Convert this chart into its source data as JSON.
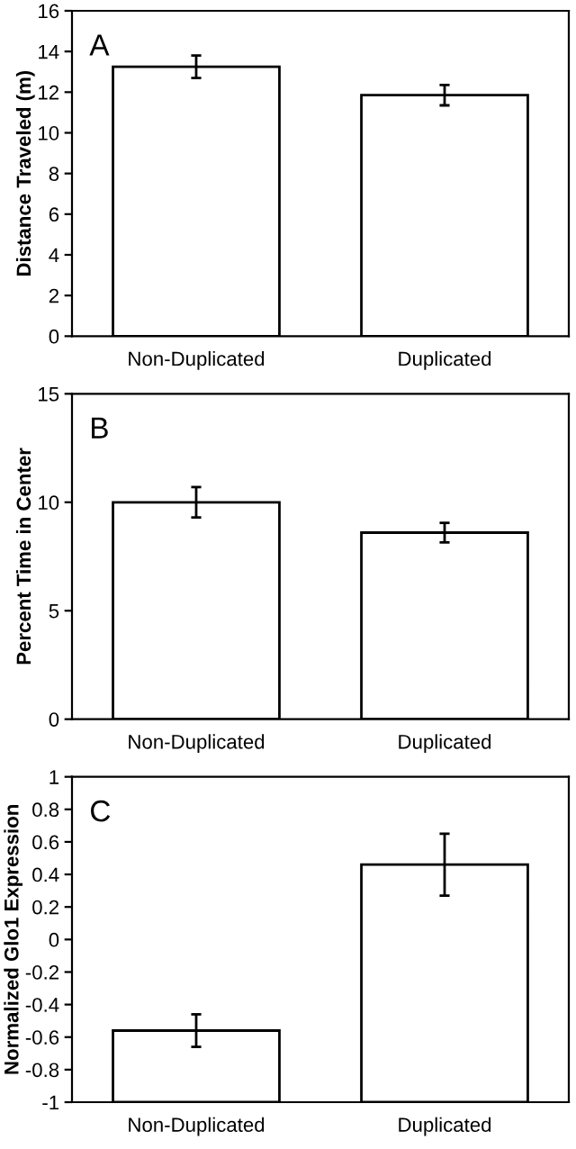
{
  "chart_data": [
    {
      "type": "bar",
      "ylabel": "Distance Traveled (m)",
      "annotations": [
        "A"
      ],
      "categories": [
        "Non-Duplicated",
        "Duplicated"
      ],
      "values": [
        13.25,
        11.85
      ],
      "errors": [
        0.55,
        0.5
      ],
      "color": "#ffffff",
      "ylim": [
        0,
        16
      ],
      "yticks": [
        0,
        2,
        4,
        6,
        8,
        10,
        12,
        14,
        16
      ],
      "grid": false,
      "legend": false
    },
    {
      "type": "bar",
      "ylabel": "Percent Time in Center",
      "annotations": [
        "B"
      ],
      "categories": [
        "Non-Duplicated",
        "Duplicated"
      ],
      "values": [
        10.0,
        8.6
      ],
      "errors": [
        0.7,
        0.45
      ],
      "color": "#ffffff",
      "ylim": [
        0,
        15
      ],
      "yticks": [
        0,
        5,
        10,
        15
      ],
      "grid": false,
      "legend": false
    },
    {
      "type": "bar",
      "ylabel": "Normalized Glo1 Expression",
      "annotations": [
        "C"
      ],
      "categories": [
        "Non-Duplicated",
        "Duplicated"
      ],
      "base": [
        -1,
        -1
      ],
      "values": [
        0.44,
        1.46
      ],
      "errors": [
        0.1,
        0.19
      ],
      "color": "#ffffff",
      "ylim": [
        -1,
        1
      ],
      "yticks": [
        -1,
        {
          "value": -0.8,
          "label": "-0.8"
        },
        {
          "value": -0.6,
          "label": "-0.6"
        },
        {
          "value": -0.4,
          "label": "-0.4"
        },
        {
          "value": -0.2,
          "label": "-0.2"
        },
        0,
        0.2,
        0.4,
        0.6,
        0.8,
        1
      ],
      "grid": false,
      "legend": false
    }
  ]
}
